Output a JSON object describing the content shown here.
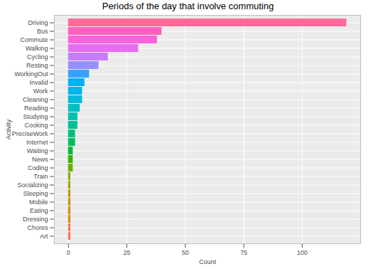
{
  "chart_data": {
    "type": "bar",
    "orientation": "horizontal",
    "title": "Periods of the day that involve commuting",
    "x_label": "Count",
    "y_label": "Activity",
    "categories": [
      "Driving",
      "Bus",
      "Commute",
      "Walking",
      "Cycling",
      "Resting",
      "WorkingOut",
      "Invalid",
      "Work",
      "Cleaning",
      "Reading",
      "Studying",
      "Cooking",
      "PreciseWork",
      "Internet",
      "Waiting",
      "News",
      "Coding",
      "Train",
      "Socializing",
      "Sleeping",
      "Mobile",
      "Eating",
      "Dressing",
      "Chores",
      "Art"
    ],
    "values": [
      119,
      40,
      38,
      30,
      17,
      13,
      9,
      7,
      6,
      6,
      5,
      4,
      4,
      3,
      3,
      2,
      2,
      2,
      1,
      1,
      1,
      1,
      1,
      1,
      1,
      1
    ],
    "colors": [
      "#FF6A98",
      "#FF62BC",
      "#FA62DB",
      "#E76BF3",
      "#C77CFF",
      "#9590FF",
      "#35A2FF",
      "#00B0F6",
      "#00B6EB",
      "#00BBDA",
      "#00BFC4",
      "#00C0AF",
      "#00C097",
      "#00BF7D",
      "#00BD5F",
      "#00BA38",
      "#39B600",
      "#6BB100",
      "#8BAB00",
      "#A3A500",
      "#B79F00",
      "#C99800",
      "#D89000",
      "#E58700",
      "#F07E4D",
      "#F8766D"
    ],
    "xlim": [
      -6,
      125
    ],
    "xticks": [
      0,
      25,
      50,
      75,
      100
    ],
    "grid": true
  }
}
